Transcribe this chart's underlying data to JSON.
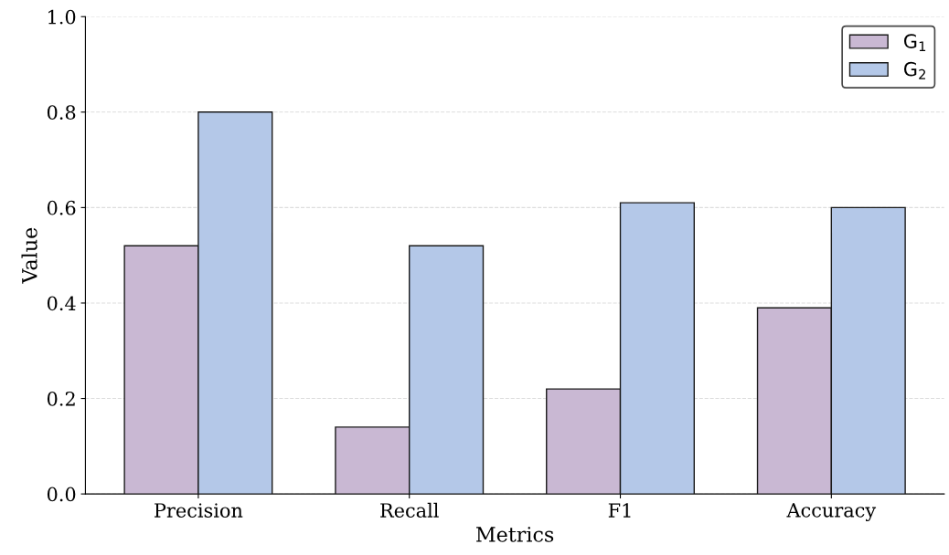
{
  "chart_data": {
    "type": "bar",
    "xlabel": "Metrics",
    "ylabel": "Value",
    "categories": [
      "Precision",
      "Recall",
      "F1",
      "Accuracy"
    ],
    "series": [
      {
        "name": "G$_{1}$",
        "color": "#c9b8d3",
        "values": [
          0.52,
          0.14,
          0.22,
          0.39
        ]
      },
      {
        "name": "G$_{2}$",
        "color": "#b4c8e8",
        "values": [
          0.8,
          0.52,
          0.61,
          0.6
        ]
      }
    ],
    "ylim": [
      0,
      1.0
    ],
    "yticks": [
      {
        "value": 0,
        "label": "0.0"
      },
      0.2,
      0.4,
      0.6,
      0.8,
      {
        "value": 1.0,
        "label": "1.0"
      }
    ],
    "grid": "y",
    "legend": "top right"
  }
}
